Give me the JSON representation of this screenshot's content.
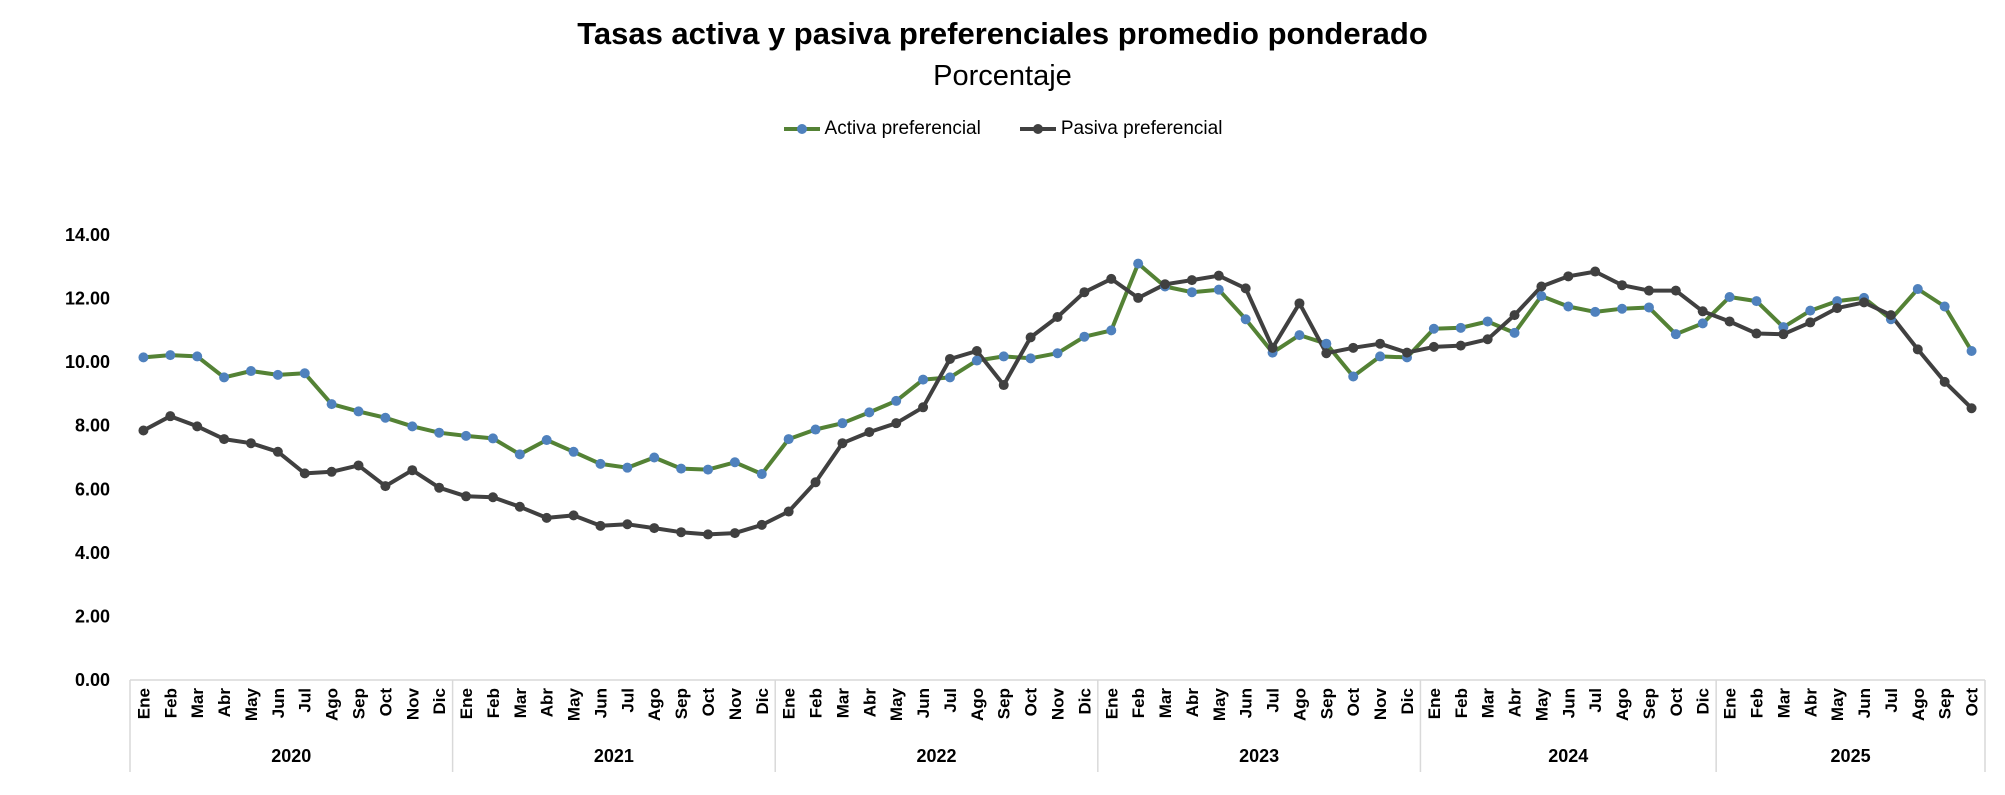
{
  "chart_data": {
    "type": "line",
    "title": "Tasas activa y pasiva preferenciales promedio ponderado",
    "subtitle": "Porcentaje",
    "ylim": [
      0,
      14
    ],
    "yticks": [
      "0.00",
      "2.00",
      "4.00",
      "6.00",
      "8.00",
      "10.00",
      "12.00",
      "14.00"
    ],
    "grid": false,
    "legend_position": "top",
    "years": [
      {
        "label": "2020",
        "months": 12
      },
      {
        "label": "2021",
        "months": 12
      },
      {
        "label": "2022",
        "months": 12
      },
      {
        "label": "2023",
        "months": 12
      },
      {
        "label": "2024",
        "months": 11
      },
      {
        "label": "2025",
        "months": 10
      }
    ],
    "categories": [
      "Ene",
      "Feb",
      "Mar",
      "Abr",
      "May",
      "Jun",
      "Jul",
      "Ago",
      "Sep",
      "Oct",
      "Nov",
      "Dic",
      "Ene",
      "Feb",
      "Mar",
      "Abr",
      "May",
      "Jun",
      "Jul",
      "Ago",
      "Sep",
      "Oct",
      "Nov",
      "Dic",
      "Ene",
      "Feb",
      "Mar",
      "Abr",
      "May",
      "Jun",
      "Jul",
      "Ago",
      "Sep",
      "Oct",
      "Nov",
      "Dic",
      "Ene",
      "Feb",
      "Mar",
      "Abr",
      "May",
      "Jun",
      "Jul",
      "Ago",
      "Sep",
      "Oct",
      "Nov",
      "Dic",
      "Ene",
      "Feb",
      "Mar",
      "Abr",
      "May",
      "Jun",
      "Jul",
      "Ago",
      "Sep",
      "Oct",
      "Dic",
      "Ene",
      "Feb",
      "Mar",
      "Abr",
      "May",
      "Jun",
      "Jul",
      "Ago",
      "Sep",
      "Oct"
    ],
    "series": [
      {
        "name": "Activa preferencial",
        "line_color": "#548235",
        "marker_color": "#4f81bd",
        "values": [
          10.15,
          10.22,
          10.18,
          9.52,
          9.72,
          9.6,
          9.65,
          8.68,
          8.45,
          8.25,
          7.98,
          7.78,
          7.68,
          7.6,
          7.1,
          7.55,
          7.18,
          6.8,
          6.68,
          7.0,
          6.65,
          6.62,
          6.85,
          6.48,
          7.58,
          7.88,
          8.08,
          8.42,
          8.78,
          9.45,
          9.52,
          10.05,
          10.18,
          10.12,
          10.28,
          10.8,
          11.0,
          13.1,
          12.38,
          12.2,
          12.28,
          11.35,
          10.3,
          10.85,
          10.58,
          9.55,
          10.18,
          10.15,
          11.05,
          11.08,
          11.28,
          10.92,
          12.08,
          11.75,
          11.58,
          11.68,
          11.72,
          10.88,
          11.22,
          12.05,
          11.92,
          11.1,
          11.62,
          11.92,
          12.02,
          11.35,
          12.3,
          11.75,
          10.35
        ]
      },
      {
        "name": "Pasiva preferencial",
        "line_color": "#404040",
        "marker_color": "#404040",
        "values": [
          7.85,
          8.3,
          7.98,
          7.58,
          7.45,
          7.18,
          6.5,
          6.55,
          6.75,
          6.1,
          6.6,
          6.05,
          5.78,
          5.75,
          5.45,
          5.1,
          5.18,
          4.85,
          4.9,
          4.78,
          4.65,
          4.58,
          4.62,
          4.88,
          5.3,
          6.22,
          7.45,
          7.8,
          8.08,
          8.58,
          10.1,
          10.35,
          9.28,
          10.78,
          11.42,
          12.2,
          12.62,
          12.02,
          12.45,
          12.58,
          12.72,
          12.32,
          10.45,
          11.85,
          10.28,
          10.45,
          10.58,
          10.3,
          10.48,
          10.52,
          10.72,
          11.48,
          12.38,
          12.7,
          12.85,
          12.42,
          12.25,
          12.25,
          11.6,
          11.28,
          10.9,
          10.88,
          11.25,
          11.7,
          11.88,
          11.48,
          10.4,
          9.38,
          8.55
        ]
      }
    ]
  }
}
